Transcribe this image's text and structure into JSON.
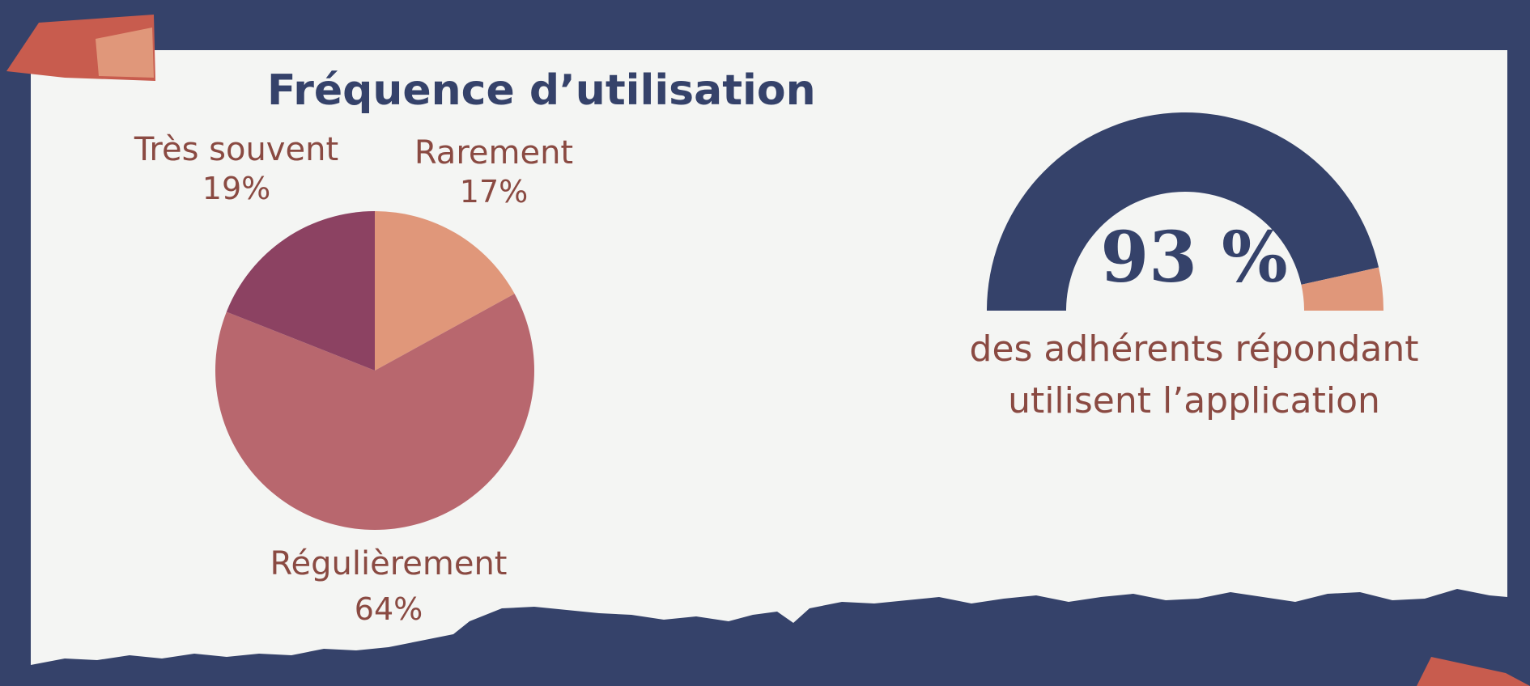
{
  "colors": {
    "background": "#35426a",
    "paper": "#f4f5f3",
    "title": "#35426a",
    "label": "#8a4a42",
    "gauge_fill": "#35426a",
    "gauge_rest": "#e0977a"
  },
  "chart_data": [
    {
      "type": "pie",
      "title": "Fréquence d’utilisation",
      "slices": [
        {
          "name": "Rarement",
          "value": 17,
          "label": "17%",
          "color": "#e0977a"
        },
        {
          "name": "Régulièrement",
          "value": 64,
          "label": "64%",
          "color": "#b8676e"
        },
        {
          "name": "Très souvent",
          "value": 19,
          "label": "19%",
          "color": "#8c4262"
        }
      ]
    },
    {
      "type": "gauge",
      "value": 93,
      "max": 100,
      "value_label": "93 %",
      "caption_lines": [
        "des adhérents répondant",
        "utilisent l’application"
      ]
    }
  ]
}
